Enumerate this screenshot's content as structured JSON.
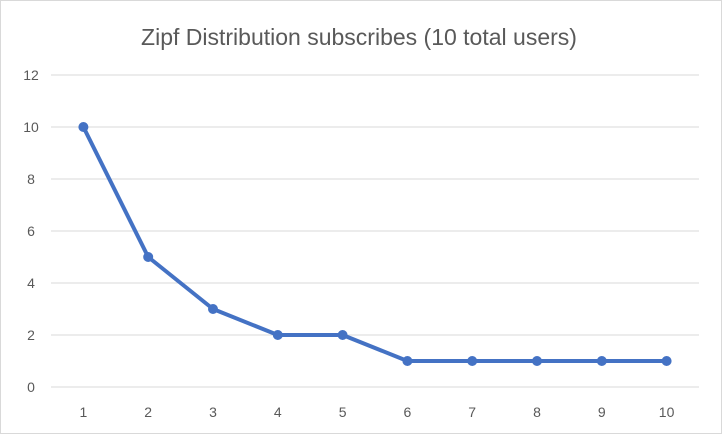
{
  "chart_data": {
    "type": "line",
    "title": "Zipf Distribution subscribes (10 total users)",
    "xlabel": "",
    "ylabel": "",
    "categories": [
      "1",
      "2",
      "3",
      "4",
      "5",
      "6",
      "7",
      "8",
      "9",
      "10"
    ],
    "series": [
      {
        "values": [
          10,
          5,
          3,
          2,
          2,
          1,
          1,
          1,
          1,
          1
        ],
        "color": "#4472c4"
      }
    ],
    "ylim": [
      0,
      12
    ],
    "yticks": [
      "0",
      "2",
      "4",
      "6",
      "8",
      "10",
      "12"
    ],
    "grid": true,
    "legend": "none",
    "markers": true
  }
}
